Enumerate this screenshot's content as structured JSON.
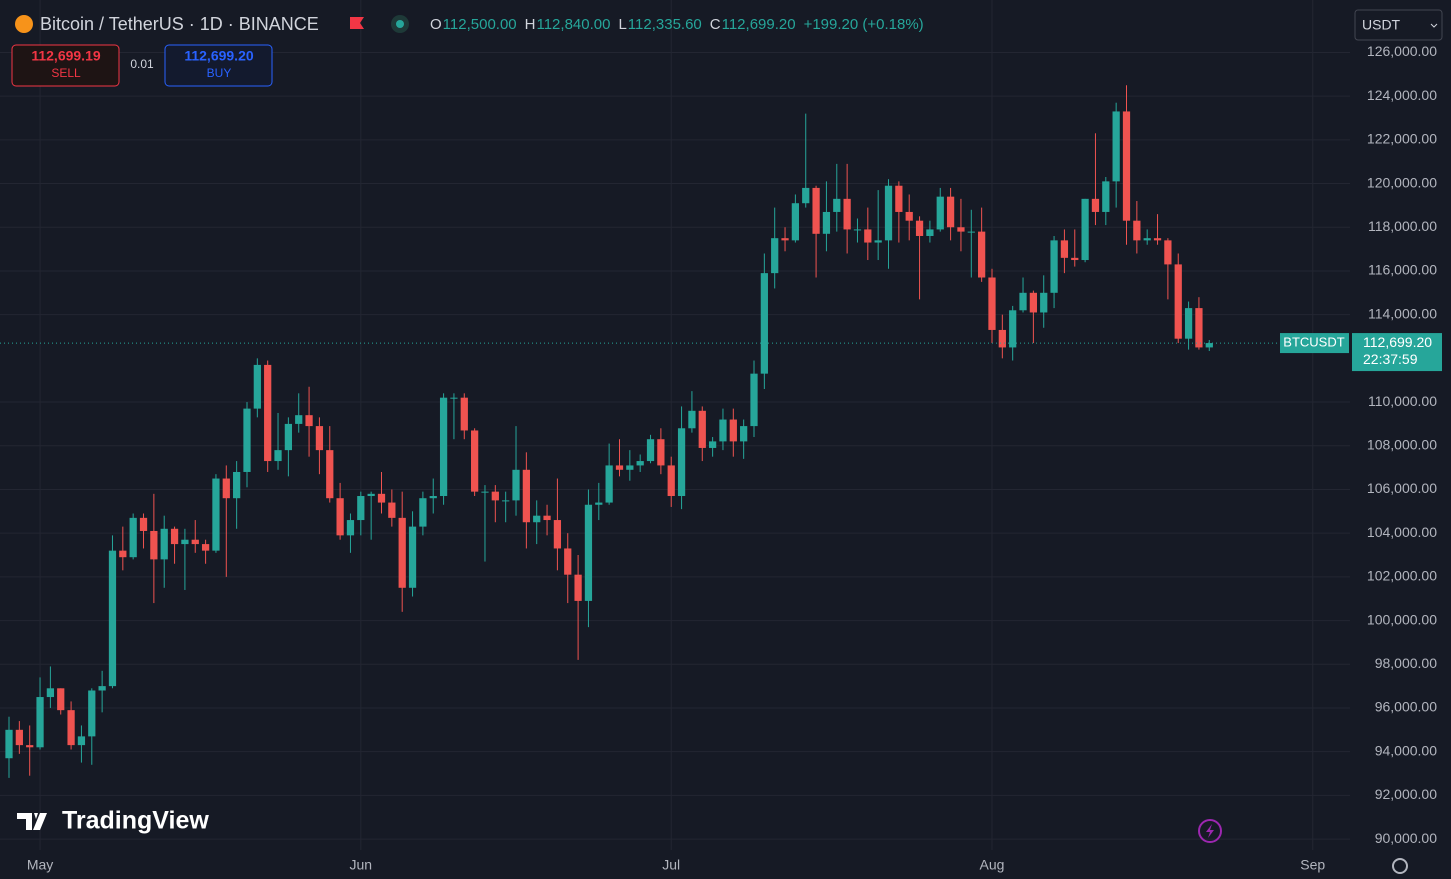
{
  "chart_data": {
    "type": "candlestick",
    "title": "Bitcoin / TetherUS · 1D · BINANCE",
    "ohlc_legend": [
      {
        "key": "O",
        "value": "112,500.00"
      },
      {
        "key": "H",
        "value": "112,840.00"
      },
      {
        "key": "L",
        "value": "112,335.60"
      },
      {
        "key": "C",
        "value": "112,699.20"
      }
    ],
    "change": "+199.20 (+0.18%)",
    "sell": {
      "price": "112,699.19",
      "label": "SELL"
    },
    "spread": "0.01",
    "buy": {
      "price": "112,699.20",
      "label": "BUY"
    },
    "currency": "USDT",
    "symbol": "BTCUSDT",
    "last_price": {
      "value": 112699.2,
      "label": "112,699.20"
    },
    "countdown": "22:37:59",
    "watermark": "TradingView",
    "up_color": "#26a69a",
    "down_color": "#ef5350",
    "grid": true,
    "open": [
      93700,
      95000,
      94300,
      94200,
      96500,
      96900,
      95900,
      94300,
      94700,
      96800,
      97000,
      103200,
      102900,
      104700,
      104100,
      102800,
      104200,
      103500,
      103700,
      103500,
      103200,
      106500,
      105600,
      106800,
      109700,
      111700,
      107300,
      107800,
      109000,
      109400,
      108900,
      107800,
      105600,
      103900,
      104600,
      105700,
      105800,
      105400,
      104700,
      101500,
      104300,
      105600,
      105700,
      110200,
      110200,
      108700,
      105900,
      105900,
      105500,
      105500,
      106900,
      104500,
      104800,
      104600,
      103300,
      102100,
      100900,
      105300,
      105400,
      107100,
      106900,
      107100,
      107300,
      108300,
      107100,
      105700,
      108800,
      109600,
      107900,
      108200,
      109200,
      108200,
      108900,
      111300,
      115900,
      117500,
      117400,
      119100,
      119800,
      117700,
      118700,
      119300,
      117900,
      117900,
      117300,
      117400,
      119900,
      118700,
      118300,
      117600,
      117900,
      119400,
      118000,
      117800,
      117800,
      115700,
      113300,
      112500,
      114200,
      115000,
      114100,
      115000,
      117400,
      116600,
      116500,
      119300,
      118700,
      120100,
      123300,
      118300,
      117400,
      117500,
      117400,
      116300,
      112900,
      114300,
      112500
    ],
    "high": [
      95600,
      95400,
      95200,
      97400,
      97900,
      96900,
      96300,
      95200,
      96900,
      97700,
      103900,
      104300,
      104900,
      104900,
      105800,
      104800,
      104300,
      104200,
      104600,
      103700,
      106700,
      107100,
      107300,
      110000,
      112000,
      111900,
      109500,
      109300,
      110400,
      110700,
      109300,
      108900,
      106300,
      104900,
      105900,
      105900,
      106800,
      106000,
      105900,
      105000,
      105900,
      106500,
      110400,
      110400,
      110400,
      108800,
      106200,
      106200,
      105900,
      108900,
      107700,
      105500,
      105300,
      106500,
      104000,
      103000,
      106000,
      106300,
      108100,
      108300,
      107800,
      107600,
      108500,
      108800,
      107500,
      109800,
      110500,
      109800,
      108400,
      109700,
      109700,
      109200,
      111900,
      116800,
      118900,
      118000,
      119500,
      123200,
      119900,
      120100,
      120900,
      120900,
      118400,
      118900,
      119700,
      120200,
      120100,
      119500,
      118500,
      118300,
      119800,
      119800,
      119300,
      118800,
      118900,
      116100,
      114000,
      114400,
      115700,
      115100,
      115800,
      117600,
      117900,
      117900,
      119300,
      122300,
      120300,
      123700,
      124500,
      119200,
      117900,
      118600,
      117500,
      116800,
      114600,
      114800,
      112840
    ],
    "low": [
      92800,
      93900,
      92900,
      94100,
      96000,
      95700,
      94100,
      93500,
      93400,
      95800,
      96900,
      102300,
      102800,
      103300,
      100800,
      101500,
      102600,
      101400,
      103100,
      102600,
      103100,
      102000,
      104200,
      106100,
      109300,
      106800,
      106900,
      106600,
      108600,
      107500,
      106700,
      105400,
      103700,
      103100,
      103900,
      103700,
      104900,
      104300,
      100400,
      101100,
      103900,
      104900,
      105300,
      108300,
      108300,
      105700,
      102700,
      104500,
      104500,
      104800,
      103300,
      103500,
      103900,
      102300,
      100800,
      98200,
      99700,
      104600,
      105300,
      106600,
      106400,
      106800,
      107200,
      106700,
      105200,
      105100,
      108600,
      107300,
      107500,
      107800,
      107500,
      107400,
      108400,
      110600,
      115200,
      116900,
      117300,
      118900,
      115700,
      116900,
      117800,
      116800,
      117300,
      116500,
      116500,
      116100,
      117300,
      117400,
      114700,
      117300,
      117800,
      117400,
      116900,
      115700,
      115500,
      112700,
      112000,
      111900,
      114100,
      112700,
      113400,
      114300,
      115900,
      116200,
      116400,
      118100,
      118100,
      118900,
      117200,
      116800,
      117200,
      117200,
      114700,
      112700,
      112400,
      112400,
      112335.6
    ],
    "close": [
      95000,
      94300,
      94200,
      96500,
      96900,
      95900,
      94300,
      94700,
      96800,
      97000,
      103200,
      102900,
      104700,
      104100,
      102800,
      104200,
      103500,
      103700,
      103500,
      103200,
      106500,
      105600,
      106800,
      109700,
      111700,
      107300,
      107800,
      109000,
      109400,
      108900,
      107800,
      105600,
      103900,
      104600,
      105700,
      105800,
      105400,
      104700,
      101500,
      104300,
      105600,
      105700,
      110200,
      110200,
      108700,
      105900,
      105900,
      105500,
      105500,
      106900,
      104500,
      104800,
      104600,
      103300,
      102100,
      100900,
      105300,
      105400,
      107100,
      106900,
      107100,
      107300,
      108300,
      107100,
      105700,
      108800,
      109600,
      107900,
      108200,
      109200,
      108200,
      108900,
      111300,
      115900,
      117500,
      117400,
      119100,
      119800,
      117700,
      118700,
      119300,
      117900,
      117900,
      117300,
      117400,
      119900,
      118700,
      118300,
      117600,
      117900,
      119400,
      118000,
      117800,
      117800,
      115700,
      113300,
      112500,
      114200,
      115000,
      114100,
      115000,
      117400,
      116600,
      116500,
      119300,
      118700,
      120100,
      123300,
      118300,
      117400,
      117500,
      117400,
      116300,
      112900,
      114300,
      112500,
      112699.2
    ],
    "xlim": [
      -0.87,
      129.6
    ],
    "xticks": [
      {
        "value": 3,
        "label": "May"
      },
      {
        "value": 34,
        "label": "Jun"
      },
      {
        "value": 64,
        "label": "Jul"
      },
      {
        "value": 95,
        "label": "Aug"
      },
      {
        "value": 126,
        "label": "Sep"
      }
    ],
    "ylim": [
      89500,
      128400
    ],
    "yticks": [
      {
        "value": 90000,
        "label": "90,000.00"
      },
      {
        "value": 92000,
        "label": "92,000.00"
      },
      {
        "value": 94000,
        "label": "94,000.00"
      },
      {
        "value": 96000,
        "label": "96,000.00"
      },
      {
        "value": 98000,
        "label": "98,000.00"
      },
      {
        "value": 100000,
        "label": "100,000.00"
      },
      {
        "value": 102000,
        "label": "102,000.00"
      },
      {
        "value": 104000,
        "label": "104,000.00"
      },
      {
        "value": 106000,
        "label": "106,000.00"
      },
      {
        "value": 108000,
        "label": "108,000.00"
      },
      {
        "value": 110000,
        "label": "110,000.00"
      },
      {
        "value": 114000,
        "label": "114,000.00"
      },
      {
        "value": 116000,
        "label": "116,000.00"
      },
      {
        "value": 118000,
        "label": "118,000.00"
      },
      {
        "value": 120000,
        "label": "120,000.00"
      },
      {
        "value": 122000,
        "label": "122,000.00"
      },
      {
        "value": 124000,
        "label": "124,000.00"
      },
      {
        "value": 126000,
        "label": "126,000.00"
      }
    ]
  }
}
